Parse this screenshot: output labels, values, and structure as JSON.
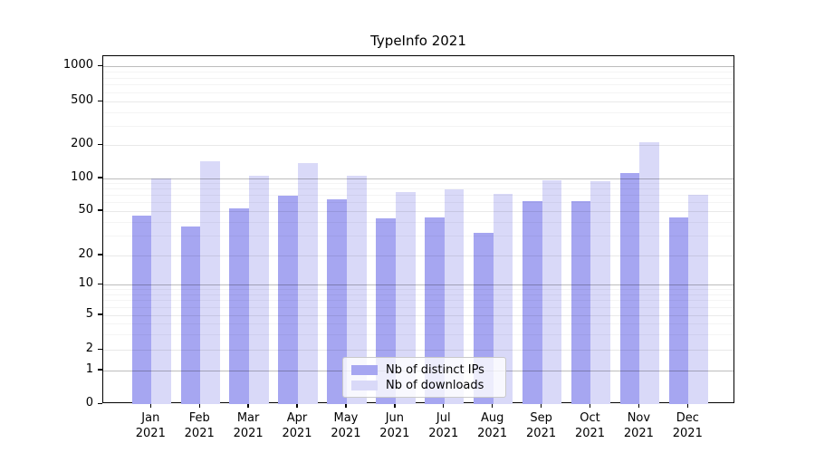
{
  "title": "TypeInfo 2021",
  "chart_data": {
    "type": "bar",
    "title": "TypeInfo 2021",
    "categories": [
      "Jan",
      "Feb",
      "Mar",
      "Apr",
      "May",
      "Jun",
      "Jul",
      "Aug",
      "Sep",
      "Oct",
      "Nov",
      "Dec"
    ],
    "category_year": "2021",
    "series": [
      {
        "name": "Nb of distinct IPs",
        "color": "#a6a6f1",
        "values": [
          45,
          36,
          53,
          69,
          64,
          43,
          44,
          32,
          61,
          61,
          112,
          44
        ]
      },
      {
        "name": "Nb of downloads",
        "color": "#d9d9f8",
        "values": [
          100,
          142,
          105,
          138,
          105,
          75,
          79,
          72,
          95,
          93,
          210,
          70
        ]
      }
    ],
    "yscale": "quasi-log (log decades above 1, linear 0-1)",
    "ylim": [
      0,
      1230
    ],
    "y_ticks": [
      0,
      1,
      2,
      5,
      10,
      20,
      50,
      100,
      200,
      500,
      1000
    ],
    "y_decade_ticks": [
      1,
      10,
      100,
      1000
    ],
    "y_minor_ticks": [
      3,
      4,
      6,
      7,
      8,
      9,
      30,
      40,
      60,
      70,
      80,
      90,
      300,
      400,
      600,
      700,
      800,
      900
    ],
    "grid": "on",
    "legend_position": "lower center",
    "xlabel": "",
    "ylabel": ""
  }
}
